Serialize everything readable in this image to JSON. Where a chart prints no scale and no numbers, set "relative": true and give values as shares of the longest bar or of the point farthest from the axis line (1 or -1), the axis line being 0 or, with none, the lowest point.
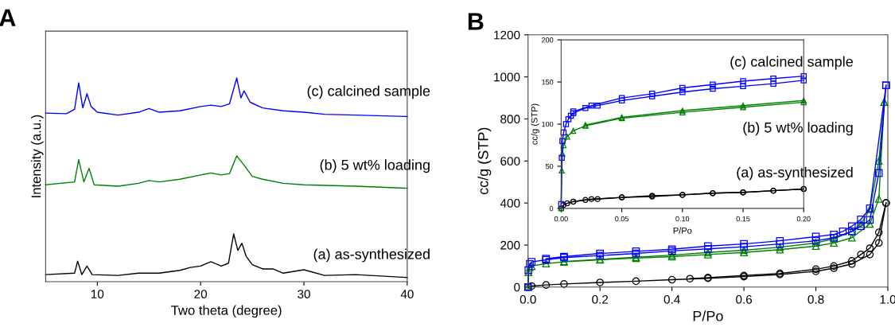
{
  "chart_data": [
    {
      "type": "line",
      "title": "A",
      "xlabel": "Two theta (degree)",
      "ylabel": "Intensity (a.u.)",
      "relative": true,
      "tick_labels": "x",
      "xlim": [
        5,
        40
      ],
      "xticks": [
        10,
        20,
        30,
        40
      ],
      "series": [
        {
          "name": "(a) as-synthesized",
          "color": "#000000",
          "x": [
            5,
            7.8,
            8.1,
            8.5,
            9.0,
            9.5,
            12,
            14,
            16,
            18,
            19,
            20,
            21,
            22,
            22.7,
            23.2,
            23.6,
            24.0,
            24.4,
            25,
            26,
            27,
            28,
            30,
            32,
            35,
            40
          ],
          "values": [
            0.035,
            0.042,
            0.101,
            0.035,
            0.077,
            0.035,
            0.031,
            0.042,
            0.042,
            0.056,
            0.07,
            0.077,
            0.098,
            0.077,
            0.091,
            0.235,
            0.154,
            0.189,
            0.126,
            0.084,
            0.063,
            0.063,
            0.042,
            0.059,
            0.031,
            0.035,
            0.021
          ]
        },
        {
          "name": "(b) 5 wt% loading",
          "color": "#008000",
          "x": [
            5,
            7.8,
            8.2,
            8.7,
            9.2,
            9.7,
            12,
            14,
            15,
            16,
            18,
            20,
            21,
            22,
            22.8,
            23.5,
            24.2,
            25,
            26,
            28,
            30,
            35,
            40
          ],
          "values": [
            0.476,
            0.49,
            0.599,
            0.49,
            0.557,
            0.476,
            0.469,
            0.483,
            0.497,
            0.49,
            0.503,
            0.524,
            0.534,
            0.524,
            0.531,
            0.618,
            0.573,
            0.517,
            0.503,
            0.483,
            0.476,
            0.469,
            0.459
          ]
        },
        {
          "name": "(c) calcined sample",
          "color": "#0000ff",
          "x": [
            5,
            7,
            7.8,
            8.2,
            8.6,
            9.0,
            9.4,
            10,
            12,
            14,
            15,
            16,
            18,
            20,
            21,
            22,
            22.8,
            23.5,
            23.9,
            24.2,
            24.8,
            26,
            28,
            30,
            32,
            35,
            40
          ],
          "values": [
            0.828,
            0.825,
            0.846,
            0.976,
            0.853,
            0.923,
            0.86,
            0.832,
            0.818,
            0.832,
            0.85,
            0.832,
            0.839,
            0.86,
            0.867,
            0.86,
            0.874,
            1.0,
            0.902,
            0.937,
            0.881,
            0.853,
            0.839,
            0.832,
            0.822,
            0.818,
            0.811
          ]
        }
      ]
    },
    {
      "type": "line",
      "title": "B",
      "xlabel": "P/Po",
      "ylabel": "cc/g (STP)",
      "xlim": [
        0,
        1
      ],
      "xticks": [
        {
          "value": 0,
          "label": "0.0"
        },
        0.2,
        0.4,
        0.6,
        0.8,
        {
          "value": 1,
          "label": "1.0"
        }
      ],
      "ylim": [
        0,
        1200
      ],
      "yticks": [
        0,
        200,
        400,
        600,
        800,
        1000,
        1200
      ],
      "series": [
        {
          "color": "#000000",
          "marker": "circle",
          "x": [
            0,
            0.01,
            0.05,
            0.1,
            0.2,
            0.3,
            0.4,
            0.5,
            0.6,
            0.7,
            0.8,
            0.85,
            0.9,
            0.95,
            0.975,
            0.995
          ],
          "values": [
            0,
            5,
            10,
            15,
            22,
            28,
            35,
            42,
            50,
            60,
            75,
            90,
            110,
            155,
            210,
            400
          ]
        },
        {
          "color": "#000000",
          "marker": "circle",
          "x": [
            0.995,
            0.975,
            0.95,
            0.925,
            0.9,
            0.85,
            0.8,
            0.7,
            0.6,
            0.5,
            0.45
          ],
          "values": [
            400,
            260,
            185,
            155,
            125,
            100,
            85,
            65,
            55,
            45,
            40
          ]
        },
        {
          "color": "#008000",
          "marker": "triangle",
          "x": [
            0,
            0.001,
            0.005,
            0.01,
            0.05,
            0.1,
            0.2,
            0.3,
            0.4,
            0.5,
            0.6,
            0.7,
            0.8,
            0.85,
            0.9,
            0.95,
            0.975,
            0.99
          ],
          "values": [
            0,
            70,
            95,
            100,
            112,
            120,
            130,
            138,
            145,
            155,
            165,
            178,
            195,
            210,
            235,
            300,
            420,
            880
          ]
        },
        {
          "color": "#008000",
          "marker": "triangle",
          "x": [
            0.99,
            0.975,
            0.95,
            0.925,
            0.9,
            0.85,
            0.8,
            0.7,
            0.6,
            0.5,
            0.4,
            0.3,
            0.2,
            0.1
          ],
          "values": [
            880,
            600,
            370,
            300,
            265,
            230,
            210,
            190,
            175,
            165,
            152,
            142,
            132,
            122
          ]
        },
        {
          "color": "#0000ff",
          "marker": "square",
          "x": [
            0,
            0.001,
            0.005,
            0.01,
            0.05,
            0.1,
            0.2,
            0.3,
            0.4,
            0.5,
            0.6,
            0.7,
            0.8,
            0.85,
            0.9,
            0.925,
            0.95,
            0.975,
            0.995
          ],
          "values": [
            0,
            80,
            110,
            120,
            130,
            140,
            150,
            160,
            172,
            182,
            192,
            205,
            220,
            235,
            265,
            290,
            320,
            543,
            960
          ]
        },
        {
          "color": "#0000ff",
          "marker": "square",
          "x": [
            0.995,
            0.95,
            0.925,
            0.9,
            0.875,
            0.85,
            0.8,
            0.7,
            0.6,
            0.5,
            0.4,
            0.3,
            0.2,
            0.1,
            0.05
          ],
          "values": [
            960,
            375,
            322,
            290,
            265,
            250,
            240,
            220,
            205,
            195,
            180,
            170,
            160,
            145,
            135
          ]
        }
      ]
    },
    {
      "type": "line",
      "xlabel": "P/Po",
      "ylabel": "cc/g (STP)",
      "xlim": [
        0,
        0.2
      ],
      "xticks": [
        {
          "value": 0,
          "label": "0.00"
        },
        {
          "value": 0.05,
          "label": "0.05"
        },
        {
          "value": 0.1,
          "label": "0.10"
        },
        {
          "value": 0.15,
          "label": "0.15"
        },
        {
          "value": 0.2,
          "label": "0.20"
        }
      ],
      "ylim": [
        0,
        200
      ],
      "yticks": [
        0,
        50,
        100,
        150,
        200
      ],
      "series": [
        {
          "name": "(a) as-synthesized",
          "color": "#000000",
          "marker": "circle",
          "x": [
            0,
            0.002,
            0.005,
            0.01,
            0.02,
            0.03,
            0.05,
            0.075,
            0.1,
            0.125,
            0.15,
            0.175,
            0.2
          ],
          "values": [
            0,
            4,
            6,
            8,
            10,
            11,
            13,
            14,
            16,
            18,
            19,
            21,
            23
          ]
        },
        {
          "color": "#000000",
          "marker": "circle",
          "x": [
            0.2,
            0.175,
            0.15,
            0.125,
            0.1,
            0.075,
            0.05,
            0.025,
            0.01
          ],
          "values": [
            23,
            21,
            19,
            18,
            16,
            15,
            13,
            11,
            8
          ]
        },
        {
          "name": "(b) 5 wt% loading",
          "color": "#008000",
          "marker": "triangle",
          "x": [
            0,
            0.0005,
            0.001,
            0.002,
            0.005,
            0.01,
            0.02,
            0.05,
            0.1,
            0.15,
            0.2
          ],
          "values": [
            0,
            45,
            65,
            75,
            85,
            92,
            98,
            107,
            114,
            120,
            126
          ]
        },
        {
          "color": "#008000",
          "marker": "triangle",
          "x": [
            0.2,
            0.15,
            0.1,
            0.05,
            0.02
          ],
          "values": [
            128,
            122,
            116,
            108,
            99
          ]
        },
        {
          "color": "#0000ff",
          "marker": "square",
          "x": [
            0,
            0.0005,
            0.001,
            0.002,
            0.004,
            0.006,
            0.008,
            0.01,
            0.02,
            0.03,
            0.05,
            0.075,
            0.1,
            0.125,
            0.15,
            0.175,
            0.2
          ],
          "values": [
            5,
            60,
            80,
            90,
            100,
            106,
            110,
            113,
            119,
            122,
            128,
            133,
            138,
            142,
            145,
            148,
            152
          ]
        },
        {
          "name": "(c) calcined sample",
          "color": "#0000ff",
          "marker": "square",
          "x": [
            0.2,
            0.175,
            0.15,
            0.125,
            0.1,
            0.075,
            0.05,
            0.025,
            0.01
          ],
          "values": [
            157,
            154,
            151,
            147,
            143,
            136,
            131,
            122,
            115
          ]
        }
      ]
    }
  ]
}
